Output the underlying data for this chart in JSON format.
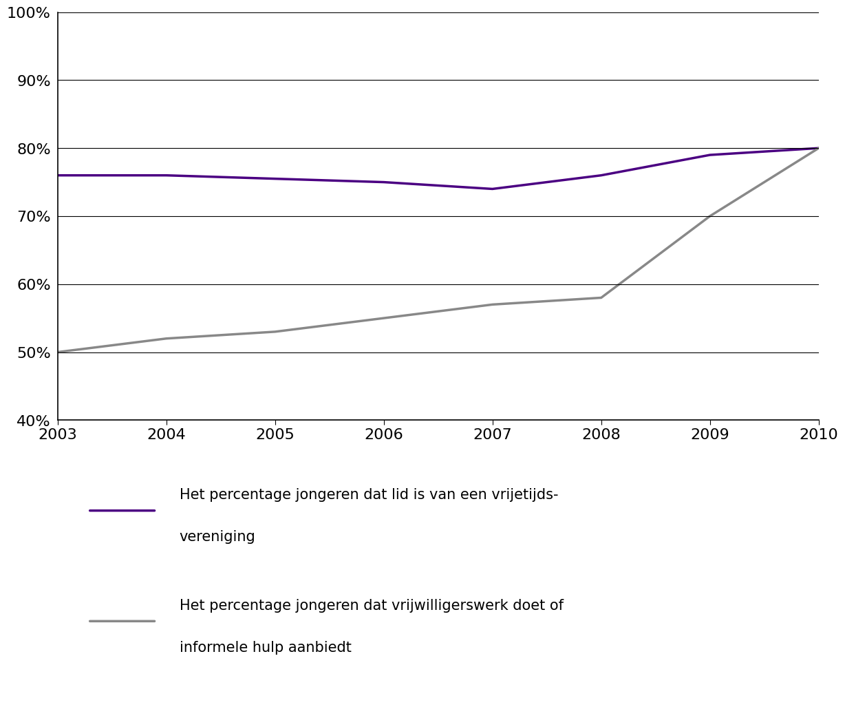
{
  "years": [
    2003,
    2004,
    2005,
    2006,
    2007,
    2008,
    2009,
    2010
  ],
  "line1_values": [
    0.76,
    0.76,
    0.755,
    0.75,
    0.74,
    0.76,
    0.79,
    0.8
  ],
  "line2_values": [
    0.5,
    0.52,
    0.53,
    0.55,
    0.57,
    0.58,
    0.7,
    0.8
  ],
  "line1_color": "#4B0082",
  "line2_color": "#888888",
  "line1_label_line1": "Het percentage jongeren dat lid is van een vrijetijds-",
  "line1_label_line2": "vereniging",
  "line2_label_line1": "Het percentage jongeren dat vrijwilligerswerk doet of",
  "line2_label_line2": "informele hulp aanbiedt",
  "ylim_min": 0.4,
  "ylim_max": 1.0,
  "yticks": [
    0.4,
    0.5,
    0.6,
    0.7,
    0.8,
    0.9,
    1.0
  ],
  "ytick_labels": [
    "40%",
    "50%",
    "60%",
    "70%",
    "80%",
    "90%",
    "100%"
  ],
  "background_color": "#ffffff",
  "line_width": 2.5,
  "tick_fontsize": 16,
  "legend_fontsize": 15,
  "grid_color": "#000000",
  "grid_linewidth": 0.8,
  "spine_color": "#000000"
}
